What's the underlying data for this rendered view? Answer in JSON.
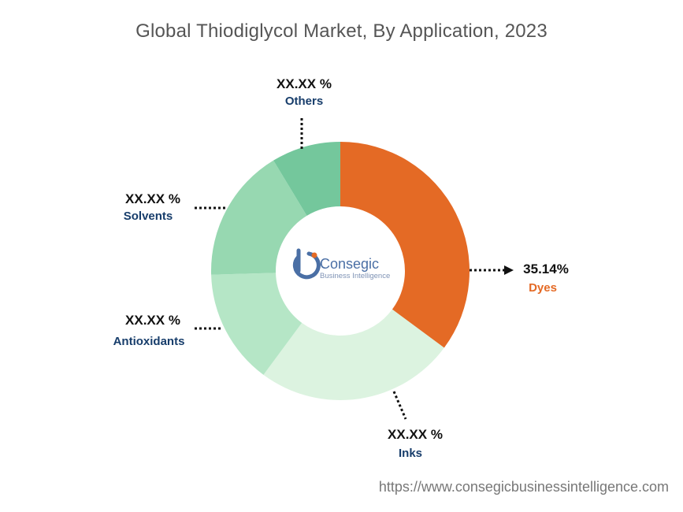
{
  "chart_data": {
    "type": "pie",
    "title": "Global Thiodiglycol Market, By Application, 2023",
    "slices": [
      {
        "name": "Dyes",
        "label": "35.14%",
        "value": 35.14,
        "color": "#e46a25",
        "name_color": "#e46a25"
      },
      {
        "name": "Inks",
        "label": "XX.XX %",
        "value": 25.0,
        "color": "#dcf3e0",
        "name_color": "#173d6b"
      },
      {
        "name": "Antioxidants",
        "label": "XX.XX %",
        "value": 14.4,
        "color": "#b5e6c6",
        "name_color": "#173d6b"
      },
      {
        "name": "Solvents",
        "label": "XX.XX %",
        "value": 16.8,
        "color": "#97d8b1",
        "name_color": "#173d6b"
      },
      {
        "name": "Others",
        "label": "XX.XX %",
        "value": 8.66,
        "color": "#74c79c",
        "name_color": "#173d6b"
      }
    ]
  },
  "logo": {
    "name": "Consegic",
    "subtitle": "Business Intelligence"
  },
  "source_url": "https://www.consegicbusinessintelligence.com"
}
